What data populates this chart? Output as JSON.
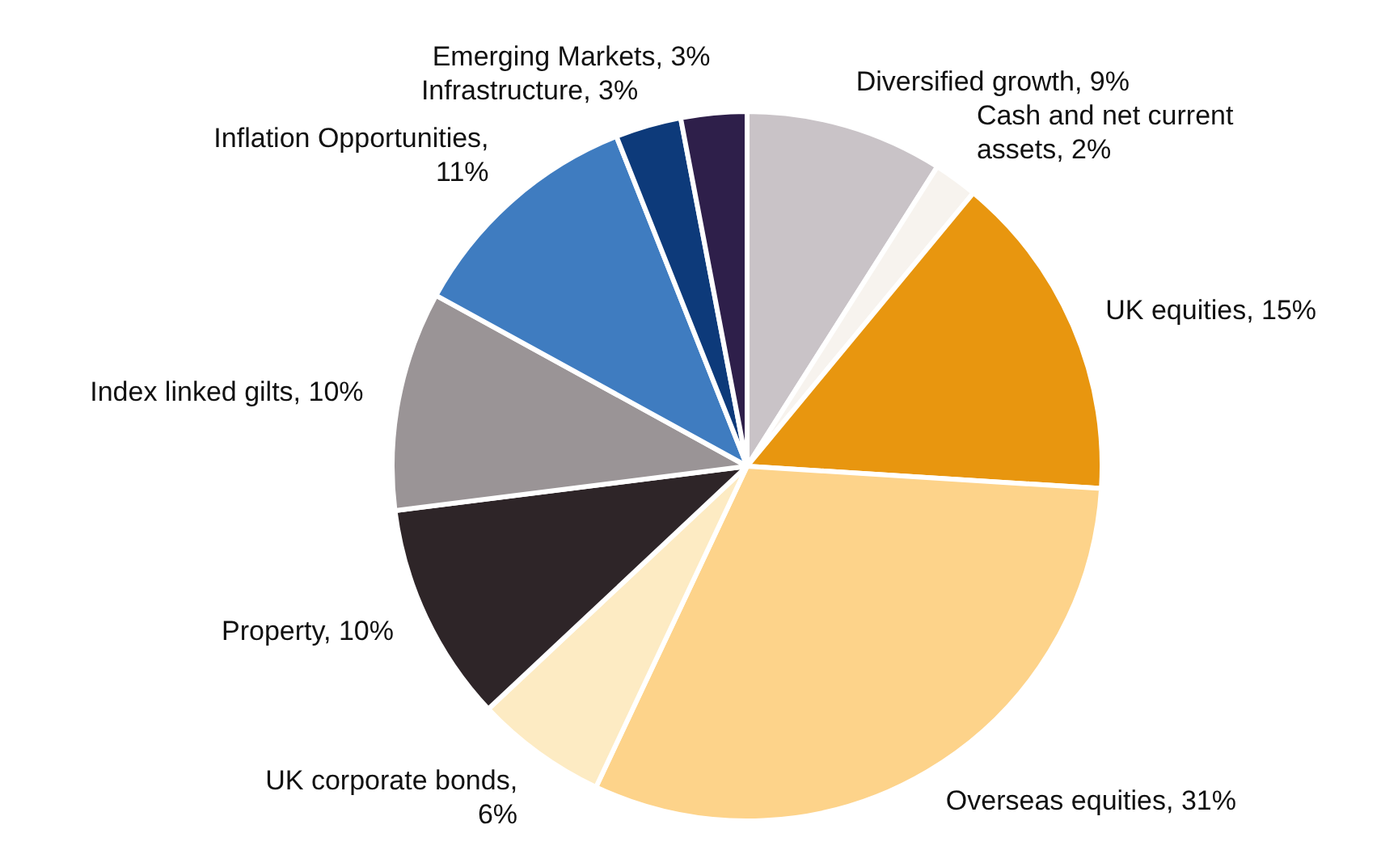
{
  "chart_data": {
    "type": "pie",
    "categories": [
      "Diversified growth, 9%",
      "Cash and net current assets, 2%",
      "UK equities, 15%",
      "Overseas equities, 31%",
      "UK corporate bonds, 6%",
      "Property, 10%",
      "Index linked gilts, 10%",
      "Inflation Opportunities, 11%",
      "Infrastructure, 3%",
      "Emerging Markets, 3%"
    ],
    "values": [
      9,
      2,
      15,
      31,
      6,
      10,
      10,
      11,
      3,
      3
    ],
    "colors": [
      "#c9c3c7",
      "#f7f3ee",
      "#e8960f",
      "#fdd38a",
      "#fdebc3",
      "#2e2528",
      "#9a9496",
      "#3f7cc0",
      "#0d3a7a",
      "#2e1f4a"
    ],
    "legend": false
  }
}
